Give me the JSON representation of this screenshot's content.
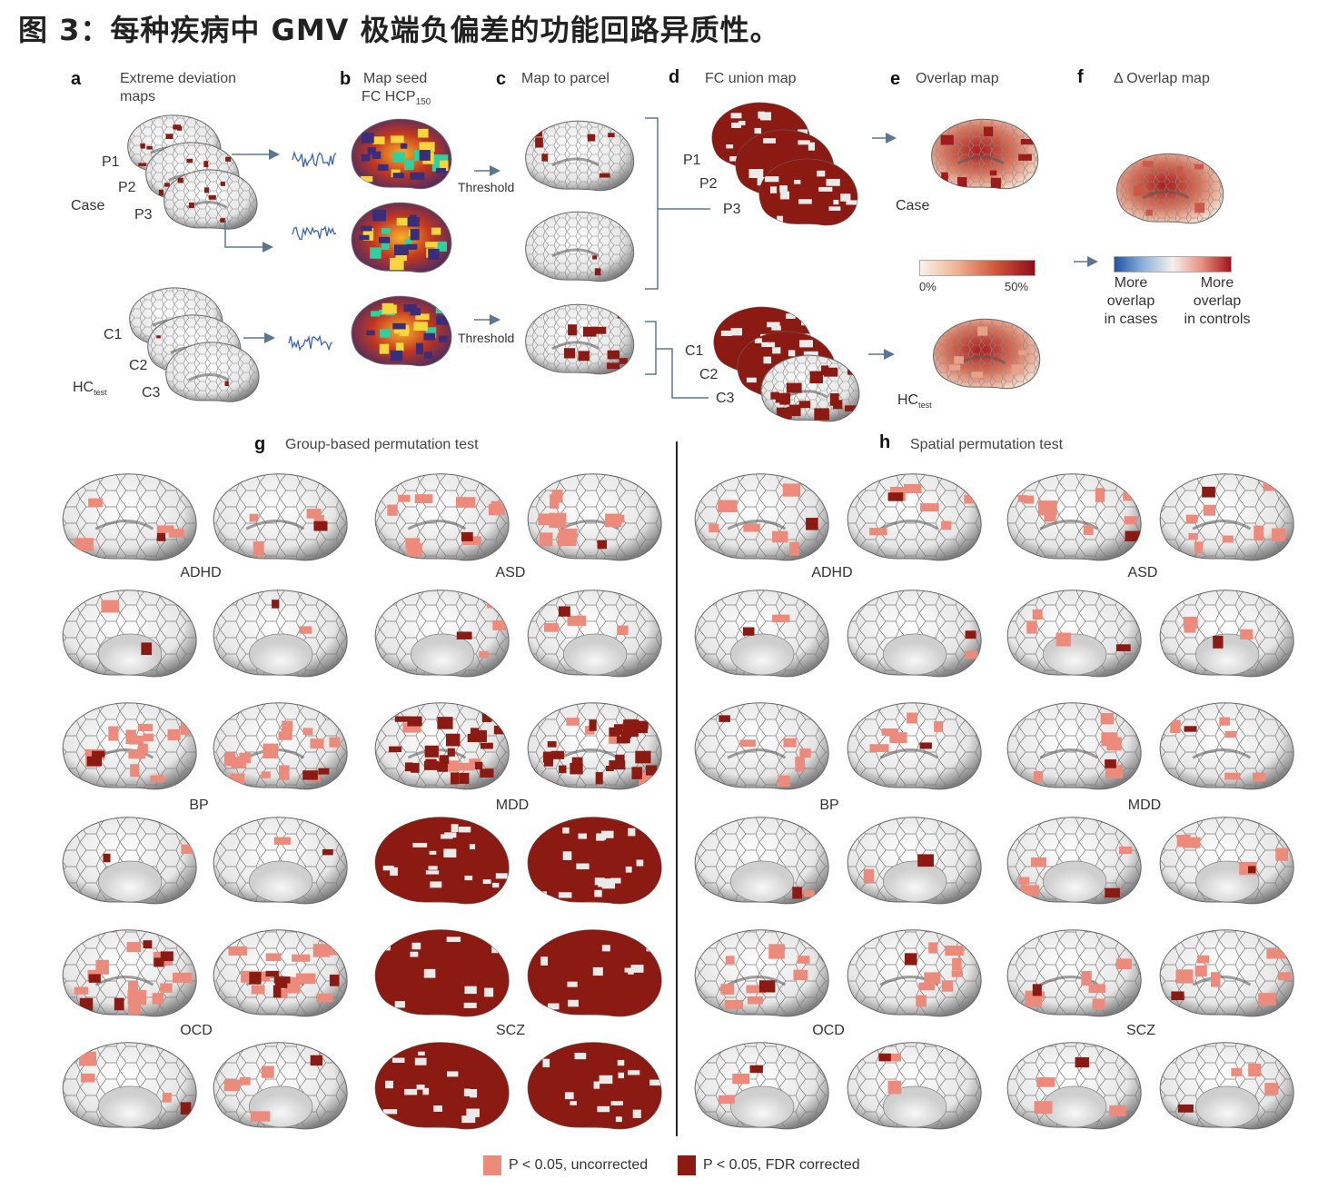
{
  "caption": "图 3：每种疾病中 GMV 极端负偏差的功能回路异质性。",
  "panels": {
    "a": {
      "letter": "a",
      "title_line1": "Extreme deviation",
      "title_line2": "maps",
      "case_labels": [
        "P1",
        "P2",
        "P3"
      ],
      "case_group": "Case",
      "control_labels": [
        "C1",
        "C2",
        "C3"
      ],
      "control_group": "HC",
      "control_group_sub": "test"
    },
    "b": {
      "letter": "b",
      "title_line1": "Map seed",
      "title_line2": "FC HCP",
      "title_sub": "150"
    },
    "c": {
      "letter": "c",
      "title": "Map to parcel",
      "threshold_label": "Threshold"
    },
    "d": {
      "letter": "d",
      "title": "FC union map",
      "case_labels": [
        "P1",
        "P2",
        "P3"
      ],
      "control_labels": [
        "C1",
        "C2",
        "C3"
      ]
    },
    "e": {
      "letter": "e",
      "title": "Overlap map",
      "case_group": "Case",
      "control_group": "HC",
      "control_group_sub": "test",
      "scale_min": "0%",
      "scale_max": "50%"
    },
    "f": {
      "letter": "f",
      "title": "Δ Overlap map",
      "left_label": [
        "More",
        "overlap",
        "in cases"
      ],
      "right_label": [
        "More",
        "overlap",
        "in controls"
      ]
    },
    "g": {
      "letter": "g",
      "title": "Group-based permutation test"
    },
    "h": {
      "letter": "h",
      "title": "Spatial permutation test"
    }
  },
  "disorders": [
    "ADHD",
    "ASD",
    "BP",
    "MDD",
    "OCD",
    "SCZ"
  ],
  "legend": {
    "uncorrected": "P < 0.05, uncorrected",
    "corrected": "P < 0.05, FDR corrected",
    "uncorrected_color": "#ec8a7c",
    "corrected_color": "#8b1a12"
  },
  "colors": {
    "dark_red": "#8b1a12",
    "light_red": "#ec8a7c",
    "arrow": "#5b7694"
  }
}
